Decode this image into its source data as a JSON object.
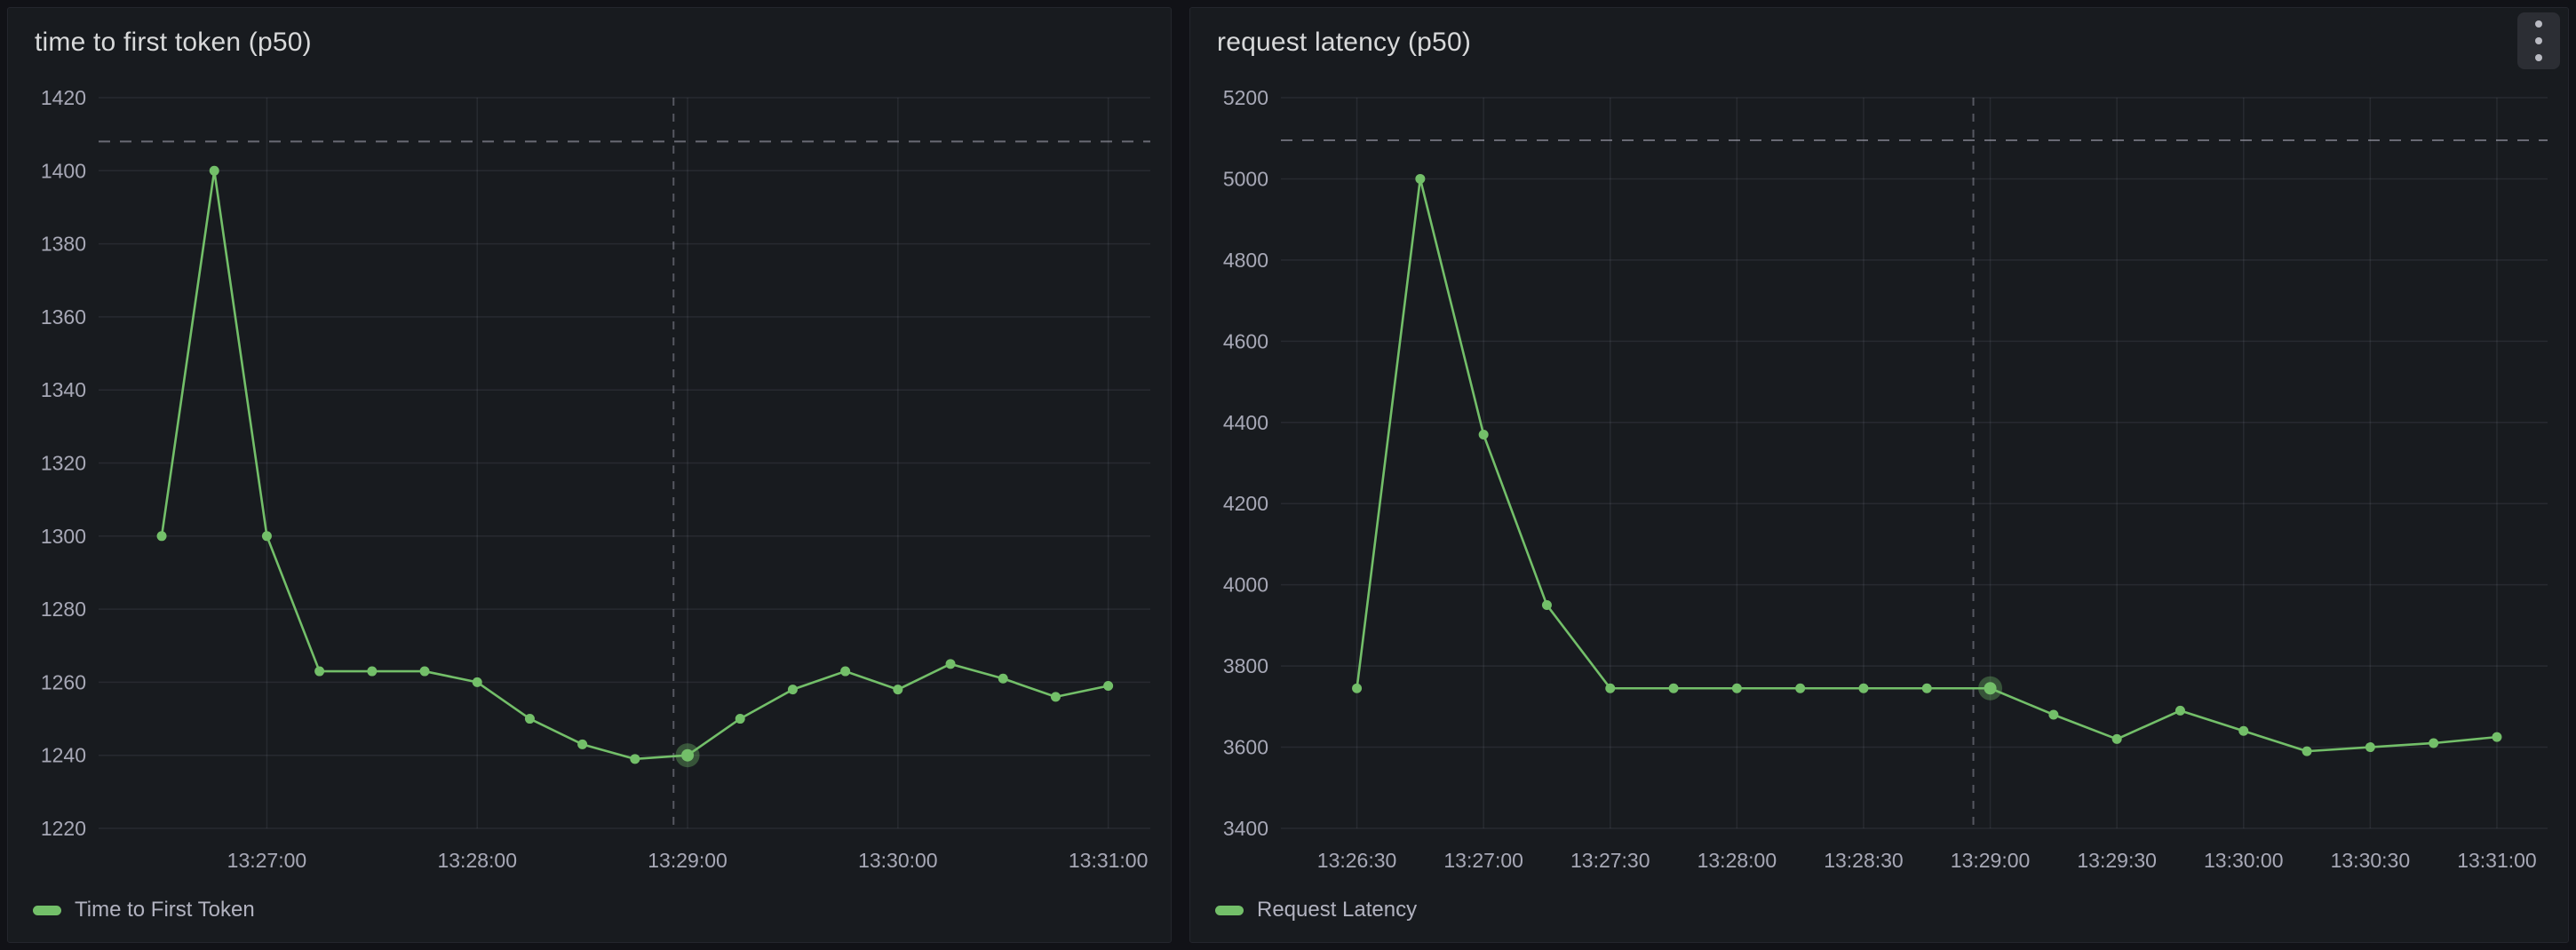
{
  "page": {
    "background": "#111217",
    "panel_background": "#181b1f",
    "panel_border": "#24262d",
    "accent_green": "#73bf69",
    "grid_color": "rgba(204,204,220,0.09)",
    "threshold_line_color": "rgba(204,204,220,0.45)",
    "crosshair_color": "rgba(204,204,220,0.35)",
    "highlight_halo_color": "rgba(115,191,105,0.35)",
    "icons": {
      "panel_menu": "kebab-vertical-icon"
    }
  },
  "panels": [
    {
      "title": "time to first token (p50)",
      "legend_label": "Time to First Token",
      "series_color": "#73bf69",
      "menu_visible": false,
      "chart_data": {
        "type": "line",
        "title": "time to first token (p50)",
        "x": [
          "13:26:30",
          "13:26:45",
          "13:27:00",
          "13:27:15",
          "13:27:30",
          "13:27:45",
          "13:28:00",
          "13:28:15",
          "13:28:30",
          "13:28:45",
          "13:29:00",
          "13:29:15",
          "13:29:30",
          "13:29:45",
          "13:30:00",
          "13:30:15",
          "13:30:30",
          "13:30:45",
          "13:31:00"
        ],
        "series": [
          {
            "name": "Time to First Token",
            "values": [
              1300,
              1400,
              1300,
              1263,
              1263,
              1263,
              1260,
              1250,
              1243,
              1239,
              1240,
              1250,
              1258,
              1263,
              1258,
              1265,
              1261,
              1256,
              1259
            ]
          }
        ],
        "x_ticks": [
          "13:27:00",
          "13:28:00",
          "13:29:00",
          "13:30:00",
          "13:31:00"
        ],
        "y_ticks": [
          1220,
          1240,
          1260,
          1280,
          1300,
          1320,
          1340,
          1360,
          1380,
          1400,
          1420
        ],
        "ylim": [
          1220,
          1420
        ],
        "xlim": [
          "13:26:12",
          "13:31:12"
        ],
        "threshold_value": 1408,
        "crosshair_time": "13:28:56",
        "highlight_index": 10,
        "grid": true,
        "legend_position": "bottom-left"
      }
    },
    {
      "title": "request latency (p50)",
      "legend_label": "Request Latency",
      "series_color": "#73bf69",
      "menu_visible": true,
      "chart_data": {
        "type": "line",
        "title": "request latency (p50)",
        "x": [
          "13:26:30",
          "13:26:45",
          "13:27:00",
          "13:27:15",
          "13:27:30",
          "13:27:45",
          "13:28:00",
          "13:28:15",
          "13:28:30",
          "13:28:45",
          "13:29:00",
          "13:29:15",
          "13:29:30",
          "13:29:45",
          "13:30:00",
          "13:30:15",
          "13:30:30",
          "13:30:45",
          "13:31:00"
        ],
        "series": [
          {
            "name": "Request Latency",
            "values": [
              3745,
              5000,
              4370,
              3950,
              3745,
              3745,
              3745,
              3745,
              3745,
              3745,
              3745,
              3680,
              3620,
              3690,
              3640,
              3590,
              3600,
              3610,
              3625
            ]
          }
        ],
        "x_ticks": [
          "13:26:30",
          "13:27:00",
          "13:27:30",
          "13:28:00",
          "13:28:30",
          "13:29:00",
          "13:29:30",
          "13:30:00",
          "13:30:30",
          "13:31:00"
        ],
        "y_ticks": [
          3400,
          3600,
          3800,
          4000,
          4200,
          4400,
          4600,
          4800,
          5000,
          5200
        ],
        "ylim": [
          3400,
          5200
        ],
        "xlim": [
          "13:26:12",
          "13:31:12"
        ],
        "threshold_value": 5095,
        "crosshair_time": "13:28:56",
        "highlight_index": 10,
        "grid": true,
        "legend_position": "bottom-left"
      }
    }
  ]
}
